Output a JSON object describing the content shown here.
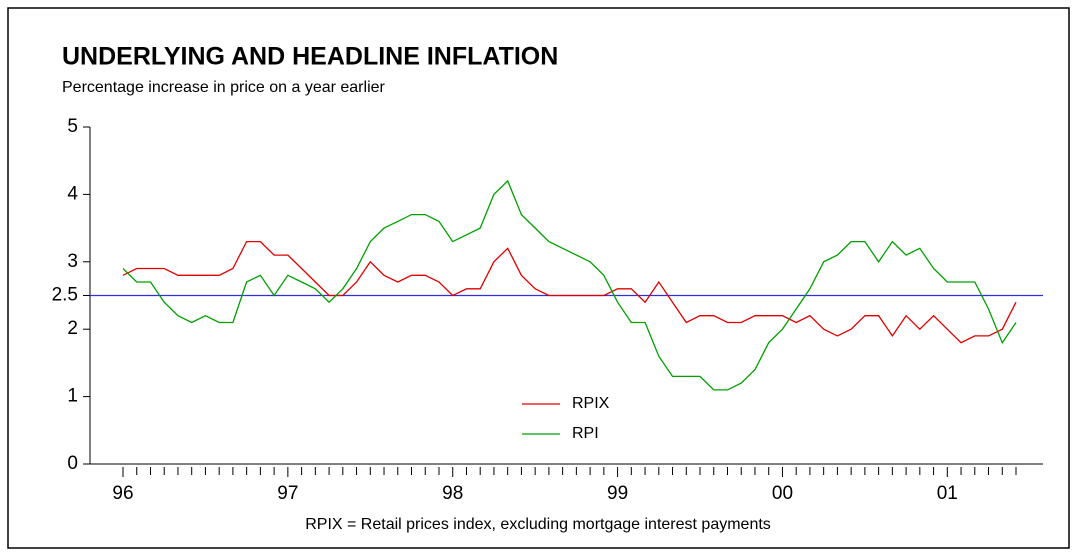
{
  "chart_data": {
    "type": "line",
    "title": "UNDERLYING AND HEADLINE INFLATION",
    "subtitle": "Percentage increase in price on a year earlier",
    "footnote": "RPIX = Retail prices index, excluding mortgage interest payments",
    "categories": [
      "96",
      null,
      null,
      null,
      null,
      null,
      null,
      null,
      null,
      null,
      null,
      null,
      "97",
      null,
      null,
      null,
      null,
      null,
      null,
      null,
      null,
      null,
      null,
      null,
      "98",
      null,
      null,
      null,
      null,
      null,
      null,
      null,
      null,
      null,
      null,
      null,
      "99",
      null,
      null,
      null,
      null,
      null,
      null,
      null,
      null,
      null,
      null,
      null,
      "00",
      null,
      null,
      null,
      null,
      null,
      null,
      null,
      null,
      null,
      null,
      null,
      "01",
      null,
      null,
      null,
      null,
      null
    ],
    "series": [
      {
        "name": "RPIX",
        "color": "#e00000",
        "values": [
          2.8,
          2.9,
          2.9,
          2.9,
          2.8,
          2.8,
          2.8,
          2.8,
          2.9,
          3.3,
          3.3,
          3.1,
          3.1,
          2.9,
          2.7,
          2.5,
          2.5,
          2.7,
          3.0,
          2.8,
          2.7,
          2.8,
          2.8,
          2.7,
          2.5,
          2.6,
          2.6,
          3.0,
          3.2,
          2.8,
          2.6,
          2.5,
          2.5,
          2.5,
          2.5,
          2.5,
          2.6,
          2.6,
          2.4,
          2.7,
          2.4,
          2.1,
          2.2,
          2.2,
          2.1,
          2.1,
          2.2,
          2.2,
          2.2,
          2.1,
          2.2,
          2.0,
          1.9,
          2.0,
          2.2,
          2.2,
          1.9,
          2.2,
          2.0,
          2.2,
          2.0,
          1.8,
          1.9,
          1.9,
          2.0,
          2.4
        ]
      },
      {
        "name": "RPI",
        "color": "#00a000",
        "values": [
          2.9,
          2.7,
          2.7,
          2.4,
          2.2,
          2.1,
          2.2,
          2.1,
          2.1,
          2.7,
          2.8,
          2.5,
          2.8,
          2.7,
          2.6,
          2.4,
          2.6,
          2.9,
          3.3,
          3.5,
          3.6,
          3.7,
          3.7,
          3.6,
          3.3,
          3.4,
          3.5,
          4.0,
          4.2,
          3.7,
          3.5,
          3.3,
          3.2,
          3.1,
          3.0,
          2.8,
          2.4,
          2.1,
          2.1,
          1.6,
          1.3,
          1.3,
          1.3,
          1.1,
          1.1,
          1.2,
          1.4,
          1.8,
          2.0,
          2.3,
          2.6,
          3.0,
          3.1,
          3.3,
          3.3,
          3.0,
          3.3,
          3.1,
          3.2,
          2.9,
          2.7,
          2.7,
          2.7,
          2.3,
          1.8,
          2.1
        ]
      }
    ],
    "reference_line": {
      "value": 2.5,
      "color": "#3030e0"
    },
    "ylim": [
      0,
      5
    ],
    "yticks": [
      0,
      1,
      2,
      2.5,
      3,
      4,
      5
    ],
    "legend": "center"
  }
}
